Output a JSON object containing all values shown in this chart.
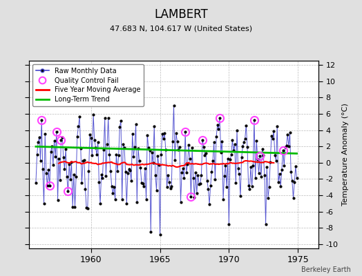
{
  "title": "LAMBERT",
  "subtitle": "47.683 N, 104.617 W (United States)",
  "ylabel": "Temperature Anomaly (°C)",
  "watermark": "Berkeley Earth",
  "xlim": [
    1955.5,
    1976.5
  ],
  "ylim": [
    -10.5,
    12.5
  ],
  "yticks": [
    -10,
    -8,
    -6,
    -4,
    -2,
    0,
    2,
    4,
    6,
    8,
    10,
    12
  ],
  "xticks": [
    1960,
    1965,
    1970,
    1975
  ],
  "bg_color": "#e0e0e0",
  "plot_bg_color": "#ffffff",
  "raw_color": "#4444cc",
  "raw_marker_color": "#000000",
  "qc_fail_color": "#ff44ff",
  "moving_avg_color": "#ff0000",
  "trend_color": "#00bb00",
  "legend_entries": [
    "Raw Monthly Data",
    "Quality Control Fail",
    "Five Year Moving Average",
    "Long-Term Trend"
  ]
}
